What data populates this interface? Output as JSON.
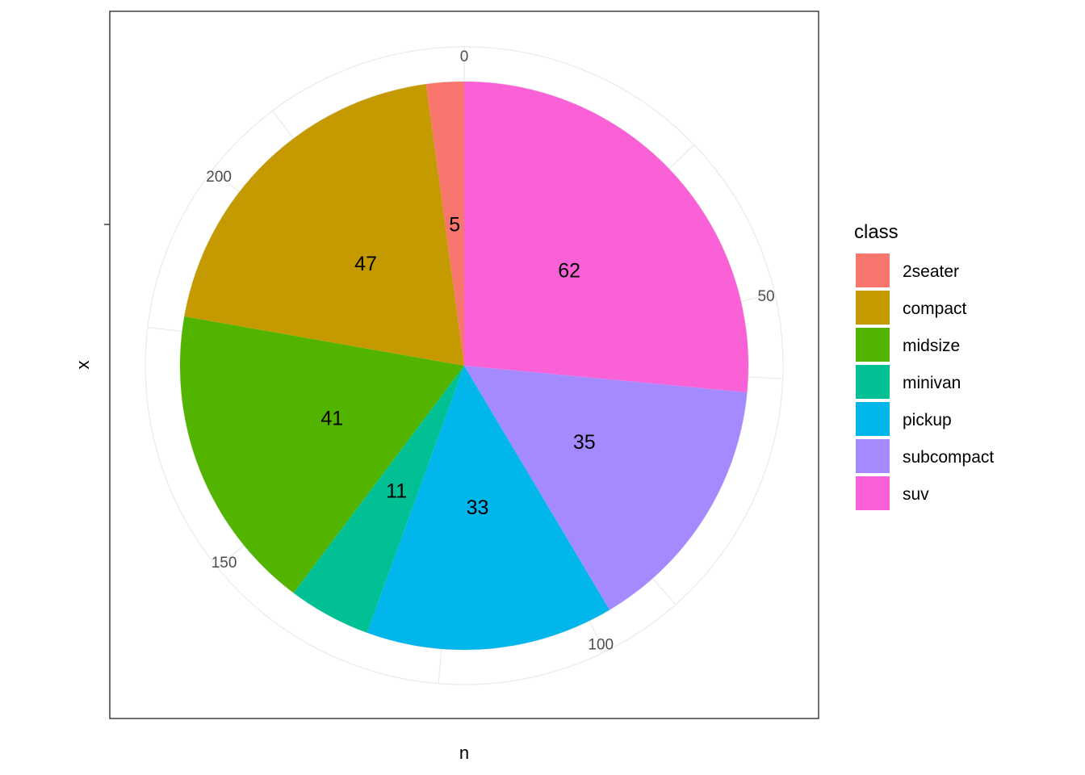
{
  "chart_data": {
    "type": "pie",
    "categories": [
      "2seater",
      "compact",
      "midsize",
      "minivan",
      "pickup",
      "subcompact",
      "suv"
    ],
    "values": [
      5,
      47,
      41,
      11,
      33,
      35,
      62
    ],
    "colors": [
      "#F8766D",
      "#C49A00",
      "#53B400",
      "#00C094",
      "#00B6EB",
      "#A58AFF",
      "#FB61D7"
    ],
    "xlabel": "n",
    "ylabel": "x",
    "theta_ticks": [
      0,
      50,
      100,
      150,
      200
    ],
    "theta_tick_labels": [
      "0",
      "50",
      "100",
      "150",
      "200"
    ],
    "theta_total": 234,
    "legend": {
      "title": "class",
      "position": "right"
    },
    "grid": true,
    "direction": "clockwise"
  }
}
